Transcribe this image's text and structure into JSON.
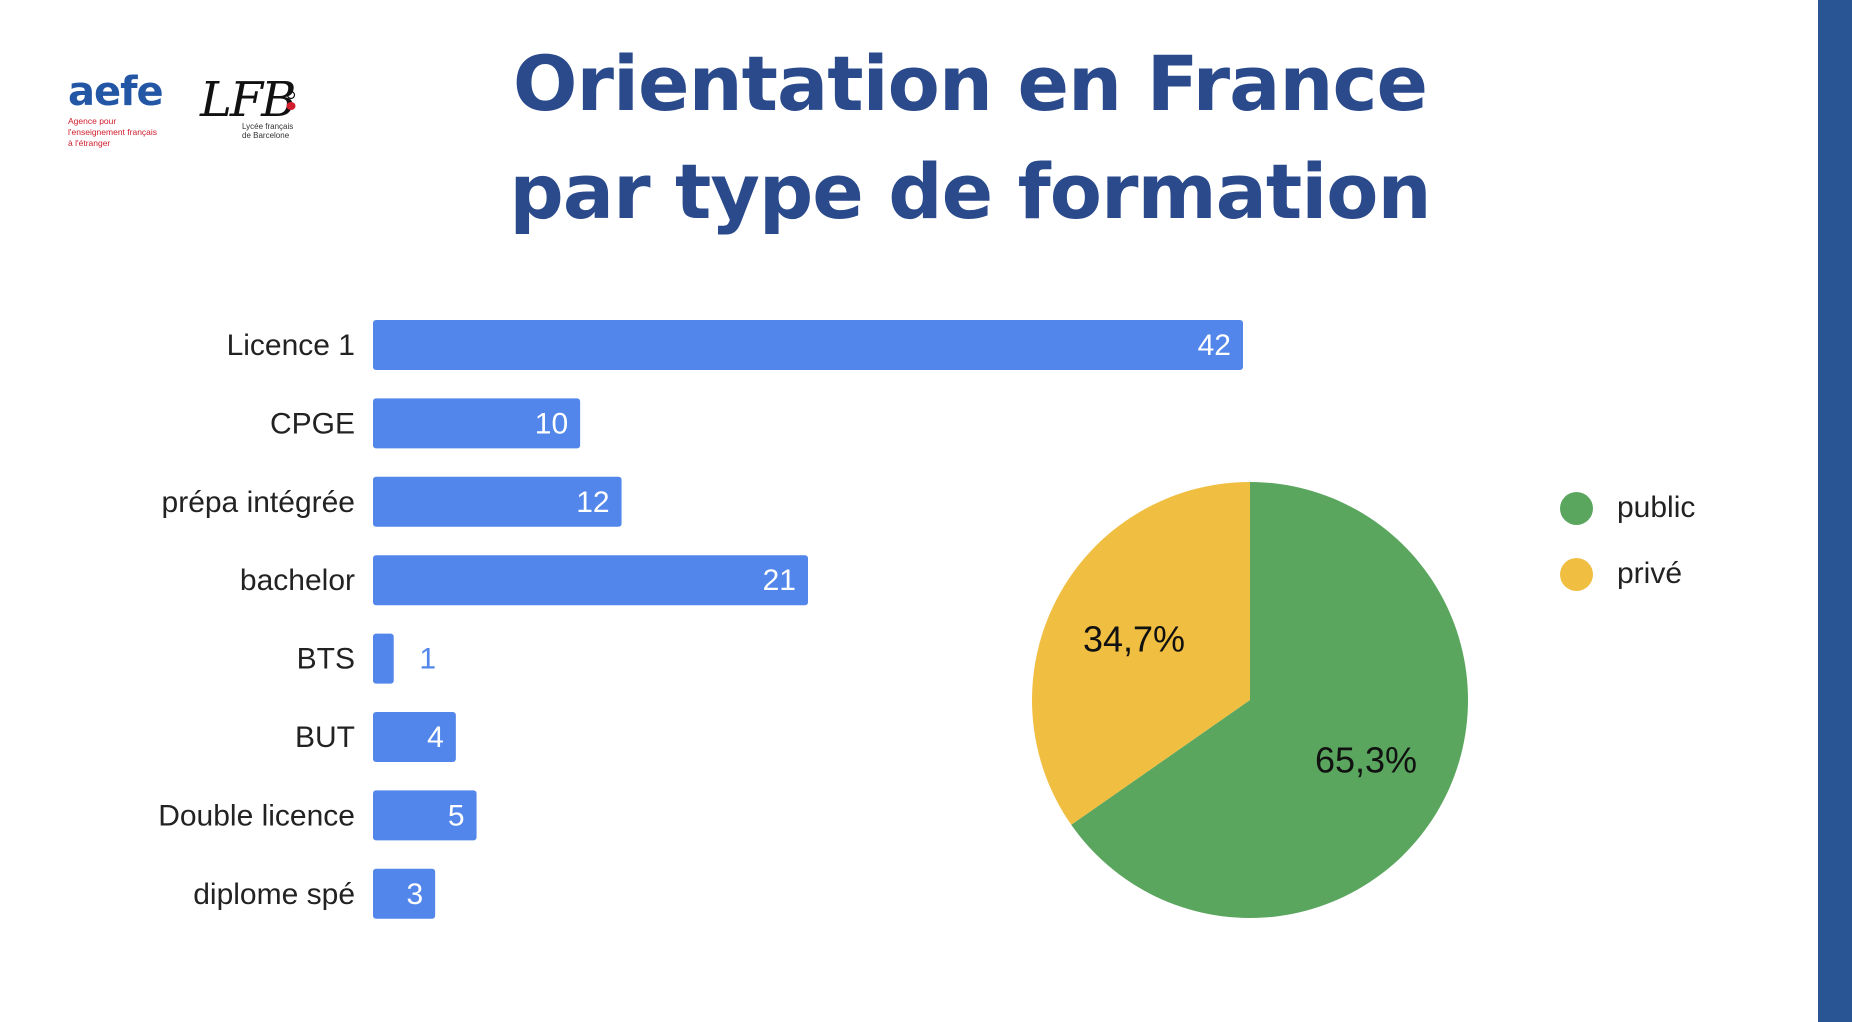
{
  "header": {
    "title_line1": "Orientation en France",
    "title_line2": "par type de formation"
  },
  "logos": {
    "aefe": {
      "word": "aefe",
      "sub1": "Agence pour",
      "sub2": "l'enseignement français",
      "sub3": "à l'étranger"
    },
    "lfb": {
      "word": "LFB",
      "sub1": "Lycée français",
      "sub2": "de Barcelone"
    }
  },
  "colors": {
    "title": "#2a4a8c",
    "aefe_blue": "#2456a6",
    "aefe_red": "#d01c2b",
    "bar": "#5286ea",
    "public": "#5aa65e",
    "prive": "#f0be41",
    "right_band": "#2a5594"
  },
  "chart_data": [
    {
      "type": "bar",
      "orientation": "horizontal",
      "categories": [
        "Licence 1",
        "CPGE",
        "prépa intégrée",
        "bachelor",
        "BTS",
        "BUT",
        "Double licence",
        "diplome spé"
      ],
      "values": [
        42,
        10,
        12,
        21,
        1,
        4,
        5,
        3
      ],
      "data_labels": [
        "42",
        "10",
        "12",
        "21",
        "1",
        "4",
        "5",
        "3"
      ],
      "xlim": [
        0,
        42
      ],
      "grid": false
    },
    {
      "type": "pie",
      "categories": [
        "public",
        "privé"
      ],
      "values": [
        65.3,
        34.7
      ],
      "data_labels": [
        "65,3%",
        "34,7%"
      ],
      "legend": "right"
    }
  ]
}
